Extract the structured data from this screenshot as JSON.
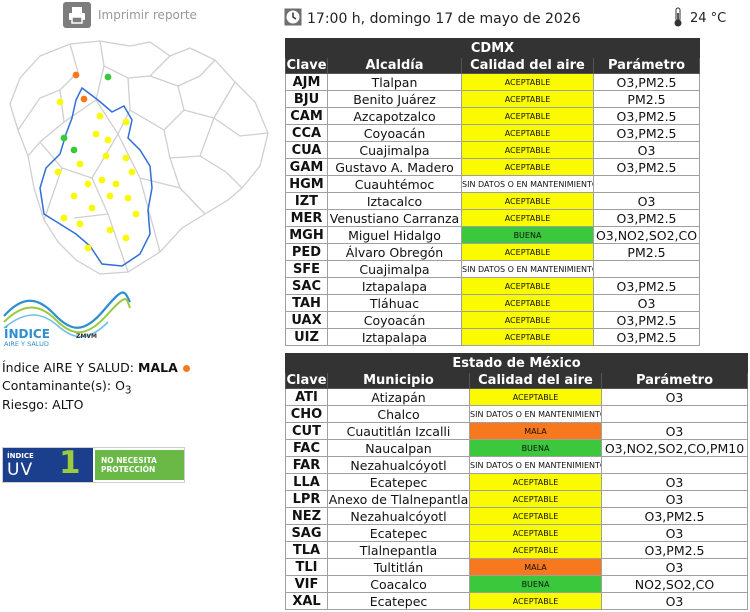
{
  "header": {
    "print_label": "Imprimir reporte",
    "datetime": "17:00 h, domingo 17 de mayo de 2026",
    "temperature": "24 °C",
    "icons": {
      "print": "printer-icon",
      "clock": "clock-icon",
      "thermometer": "thermometer-icon"
    }
  },
  "summary": {
    "index_label": "Índice AIRE Y SALUD:",
    "index_value": "MALA",
    "contaminant_label": "Contaminante(s):",
    "contaminant_value": "O",
    "contaminant_sub": "3",
    "risk_label": "Riesgo:",
    "risk_value": "ALTO",
    "index_color": "#f47a20"
  },
  "brand": {
    "line1": "ÍNDICE",
    "line2": "AIRE Y SALUD",
    "line3": "ZMVM"
  },
  "uv": {
    "label_small": "ÍNDICE",
    "label_big": "UV",
    "value": "1",
    "message": "NO NECESITA PROTECCIÓN"
  },
  "cdmx": {
    "title": "CDMX",
    "columns": [
      "Clave",
      "Alcaldía",
      "Calidad del aire",
      "Parámetro"
    ],
    "rows": [
      {
        "clave": "AJM",
        "name": "Tlalpan",
        "quality": "ACEPTABLE",
        "param": "O3,PM2.5"
      },
      {
        "clave": "BJU",
        "name": "Benito Juárez",
        "quality": "ACEPTABLE",
        "param": "PM2.5"
      },
      {
        "clave": "CAM",
        "name": "Azcapotzalco",
        "quality": "ACEPTABLE",
        "param": "O3,PM2.5"
      },
      {
        "clave": "CCA",
        "name": "Coyoacán",
        "quality": "ACEPTABLE",
        "param": "O3,PM2.5"
      },
      {
        "clave": "CUA",
        "name": "Cuajimalpa",
        "quality": "ACEPTABLE",
        "param": "O3"
      },
      {
        "clave": "GAM",
        "name": "Gustavo A. Madero",
        "quality": "ACEPTABLE",
        "param": "O3,PM2.5"
      },
      {
        "clave": "HGM",
        "name": "Cuauhtémoc",
        "quality": "SIN DATOS O EN MANTENIMIENTO",
        "param": ""
      },
      {
        "clave": "IZT",
        "name": "Iztacalco",
        "quality": "ACEPTABLE",
        "param": "O3"
      },
      {
        "clave": "MER",
        "name": "Venustiano Carranza",
        "quality": "ACEPTABLE",
        "param": "O3,PM2.5"
      },
      {
        "clave": "MGH",
        "name": "Miguel Hidalgo",
        "quality": "BUENA",
        "param": "O3,NO2,SO2,CO"
      },
      {
        "clave": "PED",
        "name": "Álvaro Obregón",
        "quality": "ACEPTABLE",
        "param": "PM2.5"
      },
      {
        "clave": "SFE",
        "name": "Cuajimalpa",
        "quality": "SIN DATOS O EN MANTENIMIENTO",
        "param": ""
      },
      {
        "clave": "SAC",
        "name": "Iztapalapa",
        "quality": "ACEPTABLE",
        "param": "O3,PM2.5"
      },
      {
        "clave": "TAH",
        "name": "Tláhuac",
        "quality": "ACEPTABLE",
        "param": "O3"
      },
      {
        "clave": "UAX",
        "name": "Coyoacán",
        "quality": "ACEPTABLE",
        "param": "O3,PM2.5"
      },
      {
        "clave": "UIZ",
        "name": "Iztapalapa",
        "quality": "ACEPTABLE",
        "param": "O3,PM2.5"
      }
    ]
  },
  "edomex": {
    "title": "Estado de México",
    "columns": [
      "Clave",
      "Municipio",
      "Calidad del aire",
      "Parámetro"
    ],
    "rows": [
      {
        "clave": "ATI",
        "name": "Atizapán",
        "quality": "ACEPTABLE",
        "param": "O3"
      },
      {
        "clave": "CHO",
        "name": "Chalco",
        "quality": "SIN DATOS O EN MANTENIMIENTO",
        "param": ""
      },
      {
        "clave": "CUT",
        "name": "Cuautitlán Izcalli",
        "quality": "MALA",
        "param": "O3"
      },
      {
        "clave": "FAC",
        "name": "Naucalpan",
        "quality": "BUENA",
        "param": "O3,NO2,SO2,CO,PM10"
      },
      {
        "clave": "FAR",
        "name": "Nezahualcóyotl",
        "quality": "SIN DATOS O EN MANTENIMIENTO",
        "param": ""
      },
      {
        "clave": "LLA",
        "name": "Ecatepec",
        "quality": "ACEPTABLE",
        "param": "O3"
      },
      {
        "clave": "LPR",
        "name": "Anexo de Tlalnepantla",
        "quality": "ACEPTABLE",
        "param": "O3"
      },
      {
        "clave": "NEZ",
        "name": "Nezahualcóyotl",
        "quality": "ACEPTABLE",
        "param": "O3,PM2.5"
      },
      {
        "clave": "SAG",
        "name": "Ecatepec",
        "quality": "ACEPTABLE",
        "param": "O3"
      },
      {
        "clave": "TLA",
        "name": "Tlalnepantla",
        "quality": "ACEPTABLE",
        "param": "O3,PM2.5"
      },
      {
        "clave": "TLI",
        "name": "Tultitlán",
        "quality": "MALA",
        "param": "O3"
      },
      {
        "clave": "VIF",
        "name": "Coacalco",
        "quality": "BUENA",
        "param": "NO2,SO2,CO"
      },
      {
        "clave": "XAL",
        "name": "Ecatepec",
        "quality": "ACEPTABLE",
        "param": "O3"
      }
    ]
  },
  "map": {
    "stations": [
      {
        "status": "MALA"
      },
      {
        "status": "BUENA"
      },
      {
        "status": "MALA"
      },
      {
        "status": "ACEPTABLE"
      },
      {
        "status": "ACEPTABLE"
      },
      {
        "status": "ACEPTABLE"
      },
      {
        "status": "ACEPTABLE"
      },
      {
        "status": "ACEPTABLE"
      },
      {
        "status": "BUENA"
      },
      {
        "status": "BUENA"
      },
      {
        "status": "ACEPTABLE"
      },
      {
        "status": "ACEPTABLE"
      },
      {
        "status": "ACEPTABLE"
      },
      {
        "status": "ACEPTABLE"
      },
      {
        "status": "ACEPTABLE"
      },
      {
        "status": "ACEPTABLE"
      },
      {
        "status": "ACEPTABLE"
      },
      {
        "status": "ACEPTABLE"
      },
      {
        "status": "ACEPTABLE"
      },
      {
        "status": "ACEPTABLE"
      },
      {
        "status": "ACEPTABLE"
      },
      {
        "status": "ACEPTABLE"
      },
      {
        "status": "ACEPTABLE"
      },
      {
        "status": "ACEPTABLE"
      },
      {
        "status": "ACEPTABLE"
      },
      {
        "status": "ACEPTABLE"
      },
      {
        "status": "ACEPTABLE"
      },
      {
        "status": "ACEPTABLE"
      }
    ]
  },
  "colors": {
    "ACEPTABLE": "#fbfb00",
    "BUENA": "#3cc83c",
    "MALA": "#f8781e",
    "header": "#333333",
    "border_line": "#2f6fd6"
  }
}
